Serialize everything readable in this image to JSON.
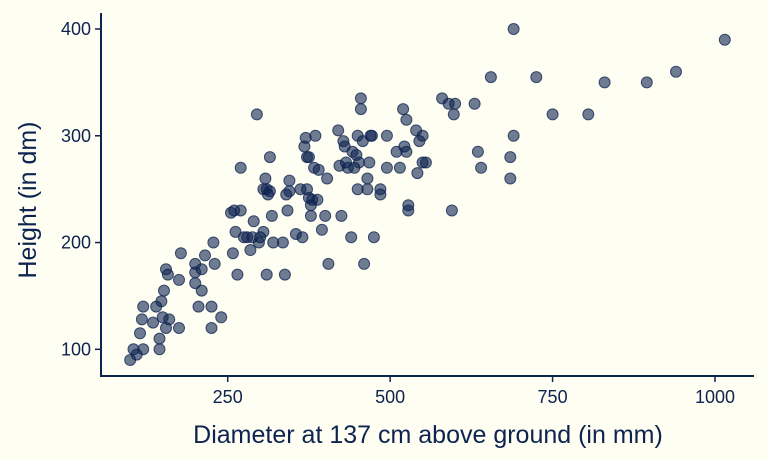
{
  "chart_data": {
    "type": "scatter",
    "xlabel": "Diameter at 137 cm above ground (in mm)",
    "ylabel": "Height (in dm)",
    "xlim": [
      55,
      1060
    ],
    "ylim": [
      75,
      415
    ],
    "xticks": [
      250,
      500,
      750,
      1000
    ],
    "yticks": [
      100,
      200,
      300,
      400
    ],
    "grid": false,
    "point_color": "#0d2350",
    "series": [
      {
        "points": [
          [
            100,
            90
          ],
          [
            105,
            100
          ],
          [
            110,
            95
          ],
          [
            120,
            100
          ],
          [
            115,
            115
          ],
          [
            118,
            128
          ],
          [
            120,
            140
          ],
          [
            135,
            125
          ],
          [
            140,
            140
          ],
          [
            145,
            100
          ],
          [
            145,
            110
          ],
          [
            148,
            145
          ],
          [
            150,
            130
          ],
          [
            152,
            155
          ],
          [
            155,
            120
          ],
          [
            155,
            175
          ],
          [
            158,
            170
          ],
          [
            160,
            128
          ],
          [
            175,
            120
          ],
          [
            175,
            165
          ],
          [
            178,
            190
          ],
          [
            200,
            172
          ],
          [
            200,
            180
          ],
          [
            200,
            162
          ],
          [
            205,
            140
          ],
          [
            210,
            155
          ],
          [
            210,
            175
          ],
          [
            215,
            188
          ],
          [
            225,
            140
          ],
          [
            225,
            120
          ],
          [
            228,
            200
          ],
          [
            230,
            180
          ],
          [
            240,
            130
          ],
          [
            255,
            228
          ],
          [
            258,
            190
          ],
          [
            260,
            230
          ],
          [
            262,
            210
          ],
          [
            265,
            170
          ],
          [
            270,
            230
          ],
          [
            270,
            270
          ],
          [
            275,
            205
          ],
          [
            280,
            205
          ],
          [
            285,
            193
          ],
          [
            288,
            205
          ],
          [
            290,
            220
          ],
          [
            295,
            320
          ],
          [
            298,
            200
          ],
          [
            300,
            205
          ],
          [
            305,
            210
          ],
          [
            305,
            250
          ],
          [
            308,
            260
          ],
          [
            310,
            250
          ],
          [
            310,
            170
          ],
          [
            312,
            245
          ],
          [
            315,
            248
          ],
          [
            315,
            280
          ],
          [
            318,
            225
          ],
          [
            320,
            200
          ],
          [
            335,
            200
          ],
          [
            338,
            170
          ],
          [
            340,
            245
          ],
          [
            342,
            230
          ],
          [
            345,
            258
          ],
          [
            345,
            248
          ],
          [
            355,
            208
          ],
          [
            362,
            250
          ],
          [
            365,
            205
          ],
          [
            368,
            290
          ],
          [
            370,
            298
          ],
          [
            372,
            280
          ],
          [
            372,
            250
          ],
          [
            375,
            280
          ],
          [
            375,
            242
          ],
          [
            378,
            225
          ],
          [
            378,
            235
          ],
          [
            380,
            240
          ],
          [
            383,
            270
          ],
          [
            385,
            300
          ],
          [
            388,
            240
          ],
          [
            390,
            268
          ],
          [
            395,
            212
          ],
          [
            400,
            225
          ],
          [
            403,
            260
          ],
          [
            405,
            180
          ],
          [
            420,
            305
          ],
          [
            422,
            272
          ],
          [
            425,
            225
          ],
          [
            428,
            295
          ],
          [
            430,
            290
          ],
          [
            432,
            275
          ],
          [
            435,
            270
          ],
          [
            440,
            205
          ],
          [
            442,
            285
          ],
          [
            445,
            270
          ],
          [
            448,
            282
          ],
          [
            450,
            300
          ],
          [
            450,
            250
          ],
          [
            452,
            275
          ],
          [
            455,
            335
          ],
          [
            455,
            325
          ],
          [
            458,
            295
          ],
          [
            460,
            180
          ],
          [
            465,
            260
          ],
          [
            465,
            250
          ],
          [
            468,
            275
          ],
          [
            470,
            300
          ],
          [
            472,
            300
          ],
          [
            475,
            205
          ],
          [
            485,
            250
          ],
          [
            485,
            245
          ],
          [
            495,
            300
          ],
          [
            495,
            270
          ],
          [
            510,
            285
          ],
          [
            515,
            270
          ],
          [
            520,
            325
          ],
          [
            522,
            290
          ],
          [
            525,
            285
          ],
          [
            525,
            315
          ],
          [
            528,
            235
          ],
          [
            528,
            230
          ],
          [
            540,
            305
          ],
          [
            542,
            265
          ],
          [
            545,
            295
          ],
          [
            550,
            300
          ],
          [
            550,
            275
          ],
          [
            555,
            275
          ],
          [
            580,
            335
          ],
          [
            590,
            330
          ],
          [
            595,
            230
          ],
          [
            598,
            320
          ],
          [
            600,
            330
          ],
          [
            630,
            330
          ],
          [
            635,
            285
          ],
          [
            640,
            270
          ],
          [
            655,
            355
          ],
          [
            685,
            260
          ],
          [
            685,
            280
          ],
          [
            690,
            300
          ],
          [
            690,
            400
          ],
          [
            725,
            355
          ],
          [
            750,
            320
          ],
          [
            805,
            320
          ],
          [
            830,
            350
          ],
          [
            895,
            350
          ],
          [
            940,
            360
          ],
          [
            1015,
            390
          ]
        ]
      }
    ]
  }
}
